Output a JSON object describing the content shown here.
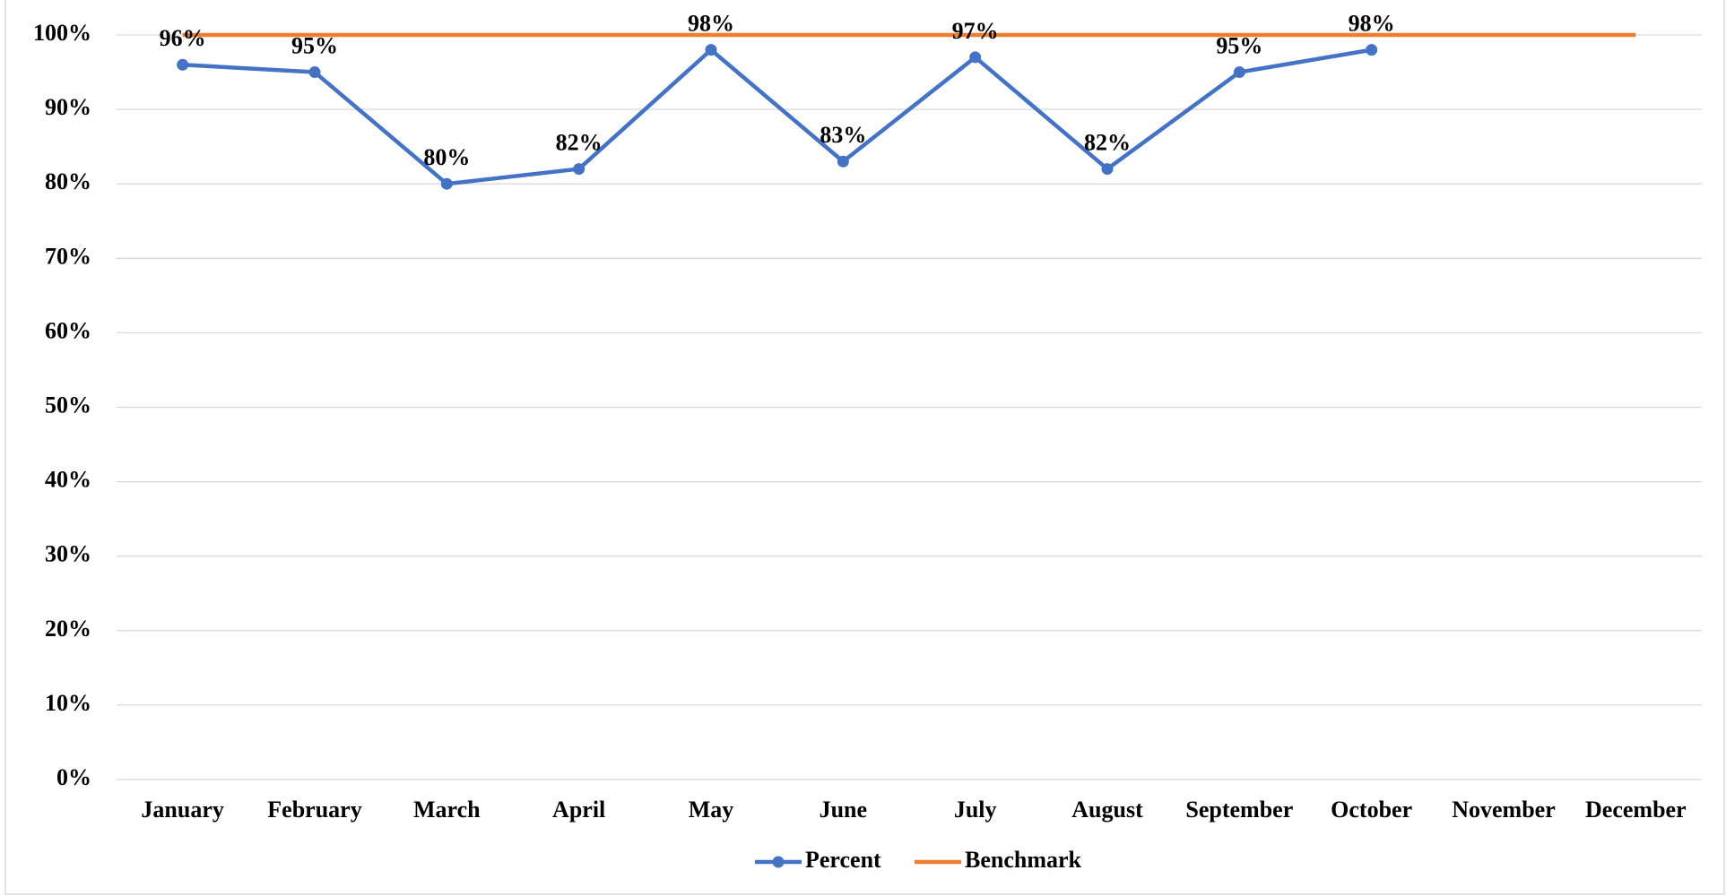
{
  "chart_data": {
    "type": "line",
    "categories": [
      "January",
      "February",
      "March",
      "April",
      "May",
      "June",
      "July",
      "August",
      "September",
      "October",
      "November",
      "December"
    ],
    "series": [
      {
        "name": "Percent",
        "color": "#4472c4",
        "values": [
          96,
          95,
          80,
          82,
          98,
          83,
          97,
          82,
          95,
          98,
          null,
          null
        ],
        "value_labels": [
          "96%",
          "95%",
          "80%",
          "82%",
          "98%",
          "83%",
          "97%",
          "82%",
          "95%",
          "98%",
          null,
          null
        ],
        "markers": true
      },
      {
        "name": "Benchmark",
        "color": "#ed7d31",
        "values": [
          100,
          100,
          100,
          100,
          100,
          100,
          100,
          100,
          100,
          100,
          100,
          100
        ],
        "markers": false
      }
    ],
    "ylim": [
      0,
      100
    ],
    "yticks": [
      {
        "value": 0,
        "label": "0%"
      },
      {
        "value": 10,
        "label": "10%"
      },
      {
        "value": 20,
        "label": "20%"
      },
      {
        "value": 30,
        "label": "30%"
      },
      {
        "value": 40,
        "label": "40%"
      },
      {
        "value": 50,
        "label": "50%"
      },
      {
        "value": 60,
        "label": "60%"
      },
      {
        "value": 70,
        "label": "70%"
      },
      {
        "value": 80,
        "label": "80%"
      },
      {
        "value": 90,
        "label": "90%"
      },
      {
        "value": 100,
        "label": "100%"
      }
    ],
    "grid": true,
    "legend": "bottom"
  }
}
